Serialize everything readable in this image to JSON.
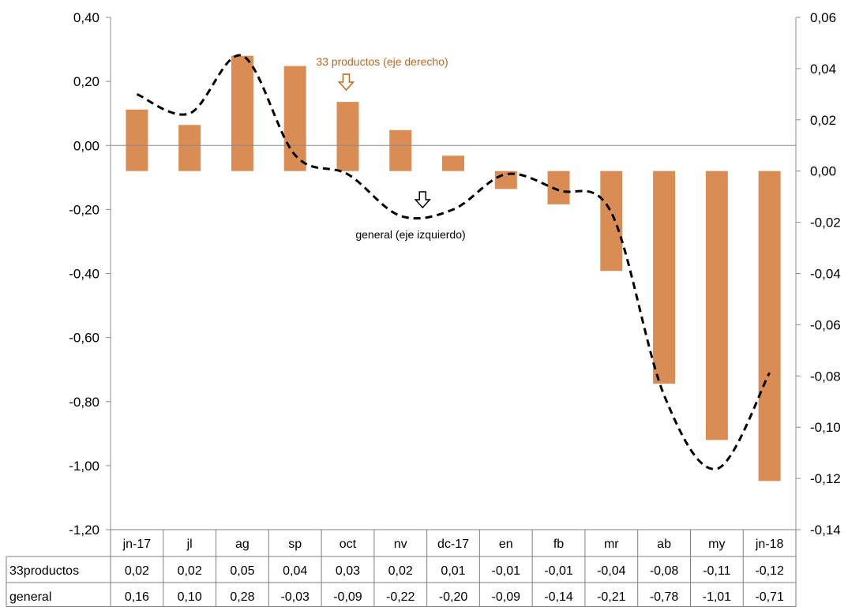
{
  "chart_data": {
    "type": "bar",
    "categories": [
      "jn-17",
      "jl",
      "ag",
      "sp",
      "oct",
      "nv",
      "dc-17",
      "en",
      "fb",
      "mr",
      "ab",
      "my",
      "jn-18"
    ],
    "series": [
      {
        "name": "33productos",
        "type": "bar",
        "axis": "right",
        "color": "#D98C54",
        "values": [
          0.024,
          0.018,
          0.045,
          0.041,
          0.027,
          0.016,
          0.006,
          -0.007,
          -0.013,
          -0.039,
          -0.083,
          -0.105,
          -0.121
        ],
        "table_values": [
          "0,02",
          "0,02",
          "0,05",
          "0,04",
          "0,03",
          "0,02",
          "0,01",
          "-0,01",
          "-0,01",
          "-0,04",
          "-0,08",
          "-0,11",
          "-0,12"
        ]
      },
      {
        "name": "general",
        "type": "line",
        "axis": "left",
        "color": "#000000",
        "style": "dashed",
        "values": [
          0.16,
          0.1,
          0.28,
          -0.03,
          -0.09,
          -0.22,
          -0.2,
          -0.09,
          -0.14,
          -0.21,
          -0.78,
          -1.01,
          -0.71
        ],
        "table_values": [
          "0,16",
          "0,10",
          "0,28",
          "-0,03",
          "-0,09",
          "-0,22",
          "-0,20",
          "-0,09",
          "-0,14",
          "-0,21",
          "-0,78",
          "-1,01",
          "-0,71"
        ]
      }
    ],
    "y_left": {
      "ylim": [
        -1.2,
        0.4
      ],
      "ticks": [
        0.4,
        0.2,
        0.0,
        -0.2,
        -0.4,
        -0.6,
        -0.8,
        -1.0,
        -1.2
      ],
      "tick_labels": [
        "0,40",
        "0,20",
        "0,00",
        "-0,20",
        "-0,40",
        "-0,60",
        "-0,80",
        "-1,00",
        "-1,20"
      ]
    },
    "y_right": {
      "ylim": [
        -0.14,
        0.06
      ],
      "ticks": [
        0.06,
        0.04,
        0.02,
        0.0,
        -0.02,
        -0.04,
        -0.06,
        -0.08,
        -0.1,
        -0.12,
        -0.14
      ],
      "tick_labels": [
        "0,06",
        "0,04",
        "0,02",
        "0,00",
        "-0,02",
        "-0,04",
        "-0,06",
        "-0,08",
        "-0,10",
        "-0,12",
        "-0,14"
      ]
    },
    "annotations": [
      {
        "text": "33 productos (eje derecho)",
        "color": "#C0661F",
        "points_to": "oct"
      },
      {
        "text": "general (eje izquierdo)",
        "color": "#000000",
        "points_to": "nv"
      }
    ],
    "table_rows": [
      "33productos",
      "general"
    ],
    "grid": false,
    "title": "",
    "xlabel": "",
    "ylabel": ""
  }
}
